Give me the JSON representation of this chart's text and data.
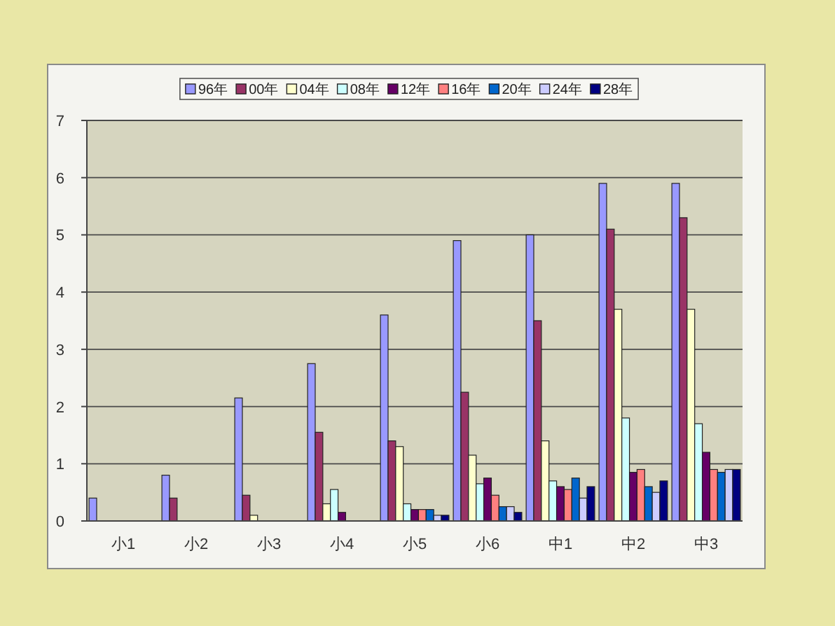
{
  "chart_data": {
    "type": "bar",
    "categories": [
      "小1",
      "小2",
      "小3",
      "小4",
      "小5",
      "小6",
      "中1",
      "中2",
      "中3"
    ],
    "series": [
      {
        "name": "96年",
        "color": "#9999ff",
        "values": [
          0.4,
          0.8,
          2.15,
          2.75,
          3.6,
          4.9,
          5.0,
          5.9,
          5.9
        ]
      },
      {
        "name": "00年",
        "color": "#993366",
        "values": [
          null,
          0.4,
          0.45,
          1.55,
          1.4,
          2.25,
          3.5,
          5.1,
          5.3
        ]
      },
      {
        "name": "04年",
        "color": "#ffffcc",
        "values": [
          null,
          null,
          0.1,
          0.3,
          1.3,
          1.15,
          1.4,
          3.7,
          3.7
        ]
      },
      {
        "name": "08年",
        "color": "#ccffff",
        "values": [
          null,
          null,
          null,
          0.55,
          0.3,
          0.65,
          0.7,
          1.8,
          1.7
        ]
      },
      {
        "name": "12年",
        "color": "#660066",
        "values": [
          null,
          null,
          null,
          0.15,
          0.2,
          0.75,
          0.6,
          0.85,
          1.2
        ]
      },
      {
        "name": "16年",
        "color": "#ff8080",
        "values": [
          null,
          null,
          null,
          null,
          0.2,
          0.45,
          0.55,
          0.9,
          0.9
        ]
      },
      {
        "name": "20年",
        "color": "#0066cc",
        "values": [
          null,
          null,
          null,
          null,
          0.2,
          0.25,
          0.75,
          0.6,
          0.85
        ]
      },
      {
        "name": "24年",
        "color": "#ccccff",
        "values": [
          null,
          null,
          null,
          null,
          0.1,
          0.25,
          0.4,
          0.5,
          0.9
        ]
      },
      {
        "name": "28年",
        "color": "#000080",
        "values": [
          null,
          null,
          null,
          null,
          0.1,
          0.15,
          0.6,
          0.7,
          0.9
        ]
      }
    ],
    "ylim": [
      0,
      7
    ],
    "yticks": [
      0,
      1,
      2,
      3,
      4,
      5,
      6,
      7
    ],
    "grid": "y",
    "legend": "top"
  }
}
